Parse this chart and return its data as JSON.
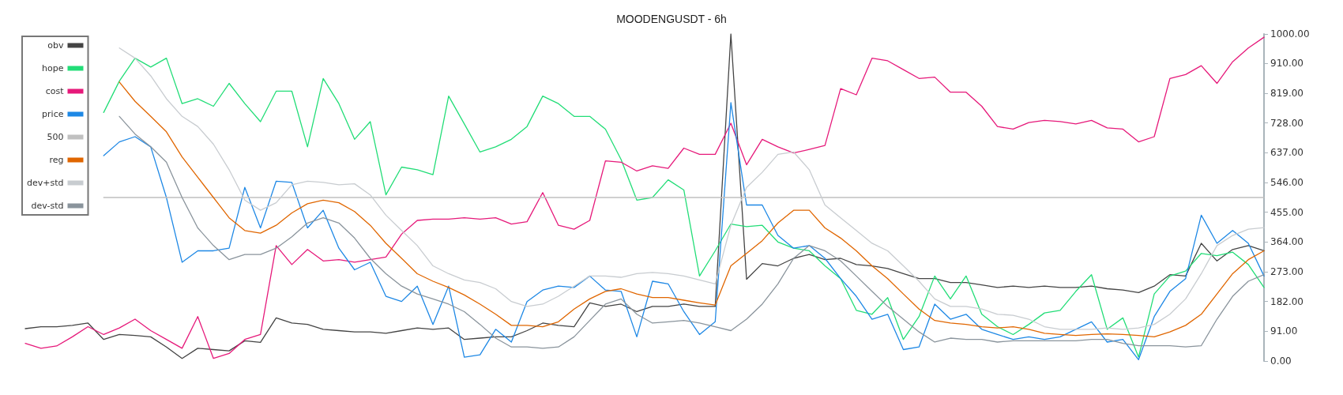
{
  "chart_data": {
    "type": "line",
    "title": "MOODENGUSDT - 6h",
    "categories": [
      null,
      null,
      null,
      null,
      null,
      null,
      null,
      null,
      null,
      null,
      null,
      null,
      null,
      null,
      null,
      null,
      null,
      null,
      null,
      null,
      null,
      null,
      null,
      null,
      null,
      null,
      null,
      null,
      null,
      null,
      null,
      null,
      null,
      null,
      null,
      null,
      null,
      null,
      null,
      null,
      null,
      null,
      null,
      null,
      null,
      null,
      null,
      null,
      null,
      null,
      null,
      null,
      null,
      null,
      null,
      null,
      null,
      null,
      null,
      null,
      null,
      null,
      null,
      null,
      null,
      null,
      null,
      null,
      null,
      null,
      null,
      null,
      null,
      null,
      null,
      null,
      null,
      null,
      null,
      null
    ],
    "series": [
      {
        "name": "obv",
        "color": "#444444",
        "values": [
          99,
          105,
          105,
          109,
          116,
          66,
          81,
          78,
          74,
          43,
          8,
          39,
          35,
          31,
          62,
          57,
          132,
          116,
          112,
          97,
          93,
          89,
          89,
          85,
          93,
          101,
          97,
          101,
          66,
          70,
          74,
          74,
          93,
          116,
          109,
          105,
          178,
          167,
          174,
          151,
          167,
          167,
          174,
          167,
          167,
          1000,
          250,
          298,
          291,
          314,
          326,
          310,
          314,
          295,
          291,
          283,
          267,
          252,
          252,
          240,
          240,
          233,
          225,
          229,
          225,
          229,
          225,
          225,
          229,
          221,
          217,
          209,
          229,
          264,
          260,
          360,
          306,
          341,
          353,
          337
        ]
      },
      {
        "name": "hope",
        "color": "#22dd77",
        "values": [
          null,
          null,
          null,
          null,
          null,
          760,
          856,
          926,
          899,
          926,
          787,
          802,
          779,
          849,
          787,
          732,
          825,
          825,
          655,
          864,
          787,
          678,
          732,
          508,
          593,
          585,
          570,
          810,
          725,
          639,
          655,
          678,
          717,
          810,
          787,
          748,
          748,
          709,
          616,
          492,
          500,
          554,
          523,
          260,
          337,
          419,
          411,
          415,
          364,
          345,
          337,
          291,
          252,
          155,
          143,
          194,
          66,
          136,
          260,
          190,
          260,
          143,
          105,
          81,
          112,
          147,
          155,
          213,
          264,
          97,
          132,
          12,
          205,
          260,
          275,
          329,
          322,
          333,
          295,
          225
        ]
      },
      {
        "name": "cost",
        "color": "#e6197a",
        "values": [
          54,
          39,
          46,
          74,
          105,
          81,
          101,
          128,
          93,
          66,
          39,
          136,
          8,
          23,
          66,
          81,
          353,
          295,
          341,
          306,
          310,
          302,
          310,
          318,
          388,
          430,
          434,
          434,
          438,
          434,
          438,
          419,
          426,
          515,
          415,
          403,
          430,
          612,
          608,
          581,
          597,
          589,
          651,
          632,
          632,
          727,
          600,
          678,
          655,
          636,
          647,
          659,
          833,
          814,
          926,
          918,
          891,
          864,
          868,
          822,
          822,
          779,
          717,
          709,
          729,
          736,
          732,
          725,
          736,
          713,
          709,
          670,
          686,
          864,
          876,
          903,
          849,
          915,
          957,
          990
        ]
      },
      {
        "name": "price",
        "color": "#1e88e5",
        "values": [
          null,
          null,
          null,
          null,
          null,
          628,
          670,
          686,
          655,
          500,
          302,
          337,
          337,
          345,
          531,
          407,
          550,
          546,
          407,
          461,
          345,
          279,
          302,
          198,
          182,
          229,
          112,
          229,
          12,
          19,
          97,
          58,
          182,
          217,
          229,
          225,
          260,
          217,
          213,
          74,
          244,
          236,
          151,
          81,
          120,
          790,
          477,
          477,
          384,
          345,
          353,
          314,
          252,
          198,
          128,
          143,
          35,
          43,
          174,
          128,
          143,
          97,
          81,
          66,
          74,
          66,
          74,
          97,
          120,
          58,
          66,
          4,
          136,
          213,
          252,
          446,
          360,
          399,
          360,
          260
        ]
      },
      {
        "name": "500",
        "color": "#c0c0c0",
        "values": [
          null,
          null,
          null,
          null,
          null,
          500,
          500,
          500,
          500,
          500,
          500,
          500,
          500,
          500,
          500,
          500,
          500,
          500,
          500,
          500,
          500,
          500,
          500,
          500,
          500,
          500,
          500,
          500,
          500,
          500,
          500,
          500,
          500,
          500,
          500,
          500,
          500,
          500,
          500,
          500,
          500,
          500,
          500,
          500,
          500,
          500,
          500,
          500,
          500,
          500,
          500,
          500,
          500,
          500,
          500,
          500,
          500,
          500,
          500,
          500,
          500,
          500,
          500,
          500,
          500,
          500,
          500,
          500,
          500,
          500,
          500,
          500,
          500,
          500,
          500,
          500,
          500,
          500,
          500,
          500
        ]
      },
      {
        "name": "reg",
        "color": "#e06600",
        "values": [
          null,
          null,
          null,
          null,
          null,
          null,
          853,
          794,
          748,
          701,
          624,
          562,
          500,
          438,
          399,
          391,
          415,
          453,
          481,
          492,
          484,
          457,
          415,
          360,
          314,
          267,
          244,
          225,
          202,
          174,
          143,
          109,
          109,
          105,
          120,
          159,
          190,
          213,
          221,
          205,
          194,
          194,
          186,
          178,
          171,
          291,
          329,
          368,
          422,
          461,
          461,
          407,
          376,
          337,
          291,
          252,
          205,
          159,
          124,
          116,
          112,
          105,
          101,
          105,
          97,
          85,
          81,
          78,
          81,
          83,
          81,
          78,
          74,
          89,
          109,
          143,
          205,
          267,
          310,
          337
        ]
      },
      {
        "name": "dev+std",
        "color": "#c8ccd0",
        "values": [
          null,
          null,
          null,
          null,
          null,
          null,
          957,
          926,
          872,
          802,
          748,
          717,
          663,
          585,
          492,
          461,
          484,
          539,
          550,
          546,
          539,
          542,
          508,
          446,
          399,
          353,
          291,
          267,
          248,
          240,
          221,
          182,
          167,
          174,
          198,
          229,
          260,
          260,
          256,
          267,
          271,
          267,
          260,
          248,
          236,
          415,
          531,
          577,
          632,
          639,
          585,
          477,
          438,
          399,
          360,
          337,
          291,
          244,
          190,
          167,
          167,
          159,
          143,
          140,
          128,
          105,
          97,
          97,
          97,
          101,
          97,
          101,
          112,
          143,
          190,
          267,
          353,
          384,
          403,
          408
        ]
      },
      {
        "name": "dev-std",
        "color": "#8a949c",
        "values": [
          null,
          null,
          null,
          null,
          null,
          null,
          748,
          694,
          655,
          608,
          500,
          407,
          353,
          310,
          326,
          326,
          345,
          380,
          422,
          438,
          422,
          376,
          314,
          267,
          229,
          205,
          190,
          174,
          151,
          112,
          70,
          43,
          43,
          39,
          43,
          74,
          124,
          174,
          190,
          143,
          116,
          120,
          124,
          116,
          105,
          93,
          128,
          174,
          236,
          314,
          353,
          337,
          306,
          260,
          213,
          167,
          128,
          89,
          58,
          70,
          66,
          66,
          58,
          62,
          62,
          62,
          62,
          62,
          66,
          66,
          54,
          47,
          47,
          47,
          43,
          47,
          128,
          198,
          244,
          264
        ]
      }
    ],
    "ylim": [
      0,
      1000
    ],
    "yticks": [
      {
        "value": 0,
        "label": "0.00"
      },
      {
        "value": 91,
        "label": "91.00"
      },
      {
        "value": 182,
        "label": "182.00"
      },
      {
        "value": 273,
        "label": "273.00"
      },
      {
        "value": 364,
        "label": "364.00"
      },
      {
        "value": 455,
        "label": "455.00"
      },
      {
        "value": 546,
        "label": "546.00"
      },
      {
        "value": 637,
        "label": "637.00"
      },
      {
        "value": 728,
        "label": "728.00"
      },
      {
        "value": 819,
        "label": "819.00"
      },
      {
        "value": 910,
        "label": "910.00"
      },
      {
        "value": 1000,
        "label": "1000.00"
      }
    ],
    "tick_labels": "y",
    "legend": "top left",
    "marker": "none",
    "line_style": "solid"
  }
}
